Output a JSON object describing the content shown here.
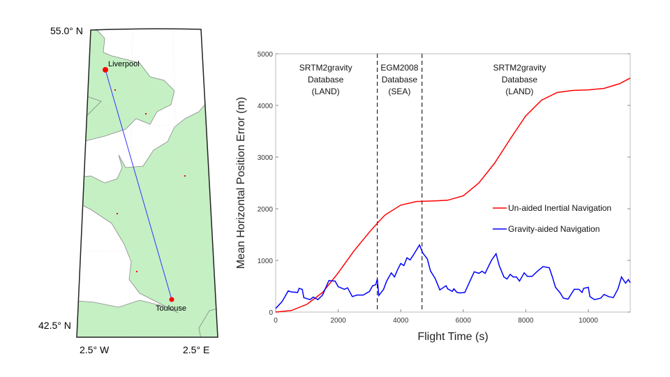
{
  "map": {
    "lat_labels": [
      "55.0° N",
      "42.5° N"
    ],
    "lon_labels": [
      "2.5° W",
      "2.5° E"
    ],
    "cities": [
      {
        "name": "Liverpool"
      },
      {
        "name": "Toulouse"
      }
    ],
    "land_color": "#c4f0c4",
    "route_color": "#3333ff",
    "city_color": "#ff0000"
  },
  "chart_data": {
    "type": "line",
    "xlabel": "Flight Time (s)",
    "ylabel": "Mean Horizontal Position Error (m)",
    "xlim": [
      0,
      11340
    ],
    "ylim": [
      0,
      5000
    ],
    "xticks": [
      0,
      2000,
      4000,
      6000,
      8000,
      10000
    ],
    "yticks": [
      0,
      1000,
      2000,
      3000,
      4000,
      5000
    ],
    "grid": false,
    "legend_placement": "center-right",
    "vlines": [
      3250,
      4680
    ],
    "annotations": [
      {
        "lines": [
          "SRTM2gravity",
          "Database",
          "(LAND)"
        ],
        "x": 1600
      },
      {
        "lines": [
          "EGM2008",
          "Database",
          "(SEA)"
        ],
        "x": 3960
      },
      {
        "lines": [
          "SRTM2gravity",
          "Database",
          "(LAND)"
        ],
        "x": 7800
      }
    ],
    "series": [
      {
        "name": "Un-aided Inertial Navigation",
        "color": "#ff0000",
        "x": [
          0,
          500,
          1000,
          1500,
          2000,
          2500,
          3000,
          3250,
          3500,
          4000,
          4500,
          5000,
          5500,
          6000,
          6500,
          7000,
          7500,
          8000,
          8500,
          9000,
          9500,
          10000,
          10500,
          11000,
          11340
        ],
        "y": [
          0,
          30,
          150,
          380,
          760,
          1180,
          1550,
          1720,
          1880,
          2070,
          2140,
          2150,
          2165,
          2250,
          2500,
          2880,
          3350,
          3800,
          4100,
          4250,
          4290,
          4300,
          4330,
          4420,
          4530
        ]
      },
      {
        "name": "Gravity-aided Navigation",
        "color": "#0000ff",
        "x": [
          0,
          200,
          300,
          400,
          500,
          700,
          750,
          850,
          900,
          1100,
          1200,
          1350,
          1500,
          1700,
          1900,
          2000,
          2200,
          2300,
          2450,
          2600,
          2800,
          3000,
          3100,
          3200,
          3250,
          3300,
          3450,
          3550,
          3700,
          3800,
          3900,
          4000,
          4100,
          4200,
          4300,
          4400,
          4600,
          4700,
          4850,
          4950,
          5100,
          5250,
          5450,
          5500,
          5650,
          5700,
          5800,
          5900,
          6050,
          6200,
          6350,
          6500,
          6600,
          6700,
          6900,
          7050,
          7150,
          7300,
          7400,
          7500,
          7600,
          7700,
          7800,
          7950,
          8050,
          8200,
          8350,
          8550,
          8750,
          8850,
          8950,
          9100,
          9200,
          9350,
          9550,
          9700,
          9800,
          9850,
          10000,
          10050,
          10200,
          10400,
          10500,
          10650,
          10800,
          10950,
          11060,
          11190,
          11280,
          11340
        ],
        "y": [
          70,
          200,
          300,
          410,
          390,
          380,
          460,
          440,
          280,
          240,
          290,
          240,
          330,
          610,
          600,
          490,
          440,
          470,
          300,
          330,
          330,
          400,
          510,
          530,
          640,
          320,
          440,
          600,
          760,
          680,
          820,
          940,
          900,
          1050,
          1010,
          1100,
          1300,
          1150,
          1030,
          800,
          650,
          430,
          510,
          450,
          400,
          450,
          380,
          370,
          380,
          580,
          780,
          750,
          790,
          750,
          1000,
          1130,
          900,
          680,
          640,
          730,
          680,
          680,
          600,
          760,
          690,
          690,
          780,
          880,
          860,
          680,
          480,
          370,
          270,
          250,
          440,
          440,
          380,
          460,
          480,
          300,
          240,
          270,
          340,
          300,
          280,
          450,
          680,
          560,
          630,
          570
        ]
      }
    ]
  }
}
